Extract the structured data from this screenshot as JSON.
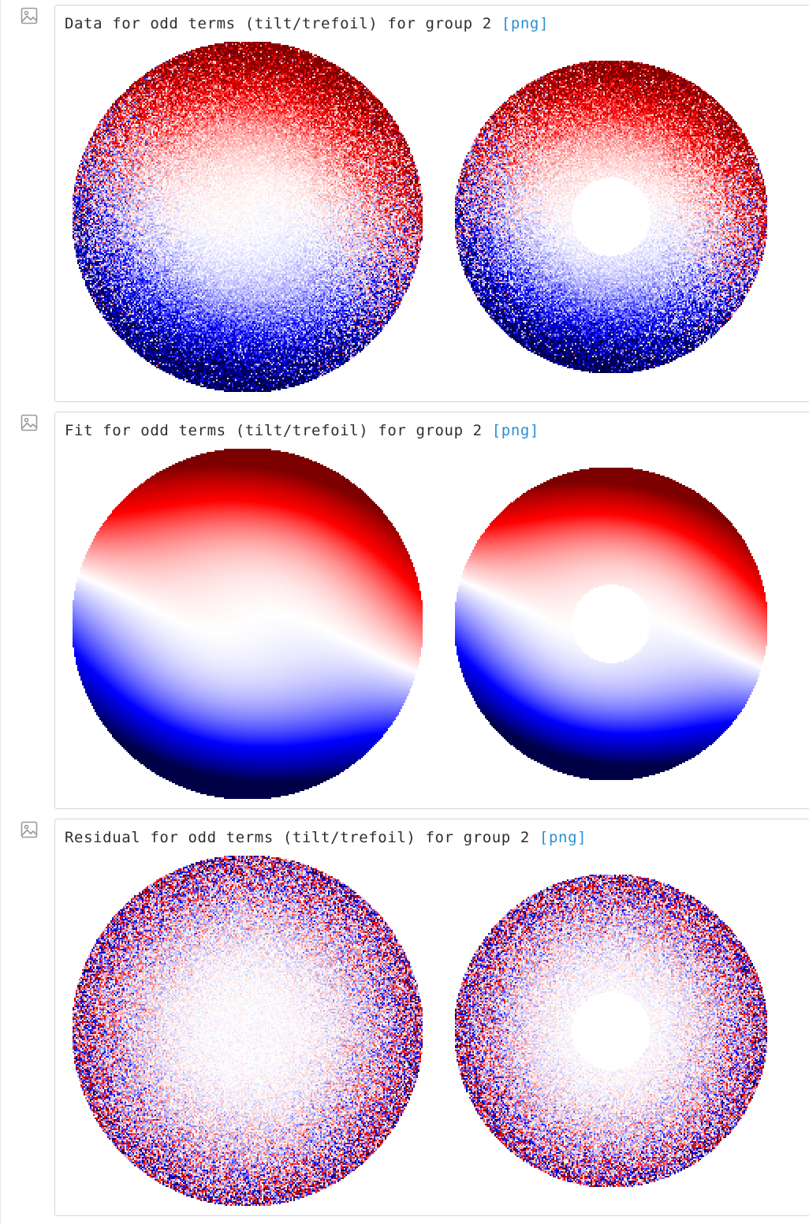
{
  "colors": {
    "link": "#2a8fd6",
    "text": "#2e2e2e",
    "border": "#d6d6d6",
    "colormap": "seismic"
  },
  "outputs": [
    {
      "icon": "image-icon",
      "caption": "Data for odd terms (tilt/trefoil) for group 2",
      "link_label": "[png]",
      "kind": "data"
    },
    {
      "icon": "image-icon",
      "caption": "Fit for odd terms (tilt/trefoil) for group 2",
      "link_label": "[png]",
      "kind": "fit"
    },
    {
      "icon": "image-icon",
      "caption": "Residual for odd terms (tilt/trefoil) for group 2",
      "link_label": "[png]",
      "kind": "residual"
    }
  ]
}
